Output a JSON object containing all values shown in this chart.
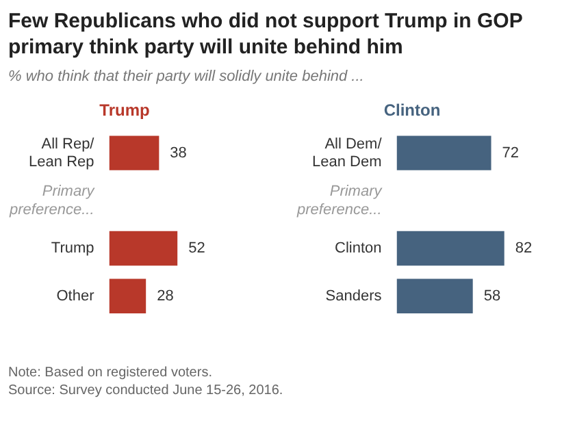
{
  "chart_data": [
    {
      "type": "bar",
      "orientation": "horizontal",
      "title": "Trump",
      "categories": [
        "All Rep/\nLean Rep",
        "Primary\npreference...",
        "Trump",
        "Other"
      ],
      "values": [
        38,
        null,
        52,
        28
      ],
      "color": "#b8382a",
      "data_labels": true,
      "legend": false,
      "grid": false,
      "annotations": [
        "Few Republicans who did not support Trump in GOP primary think party will unite behind him",
        "% who think that their party will solidly unite behind ...",
        "Note: Based on registered voters.",
        "Source: Survey conducted June 15-26, 2016."
      ]
    },
    {
      "type": "bar",
      "orientation": "horizontal",
      "title": "Clinton",
      "categories": [
        "All Dem/\nLean Dem",
        "Primary\npreference...",
        "Clinton",
        "Sanders"
      ],
      "values": [
        72,
        null,
        82,
        58
      ],
      "color": "#46637f",
      "data_labels": true,
      "legend": false,
      "grid": false
    }
  ]
}
